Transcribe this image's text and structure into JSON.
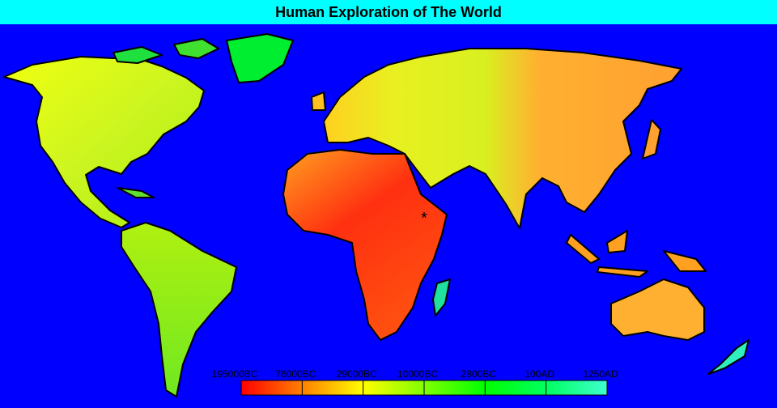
{
  "title": "Human Exploration of The World",
  "marker": "*",
  "legend": {
    "labels": [
      "195000BC",
      "76000BC",
      "29000BC",
      "10000BC",
      "2800BC",
      "100AD",
      "1250AD"
    ],
    "colors": [
      "#ff0000",
      "#ff8000",
      "#ffff00",
      "#80ff00",
      "#00ff00",
      "#00ff60",
      "#40ffd0"
    ]
  }
}
